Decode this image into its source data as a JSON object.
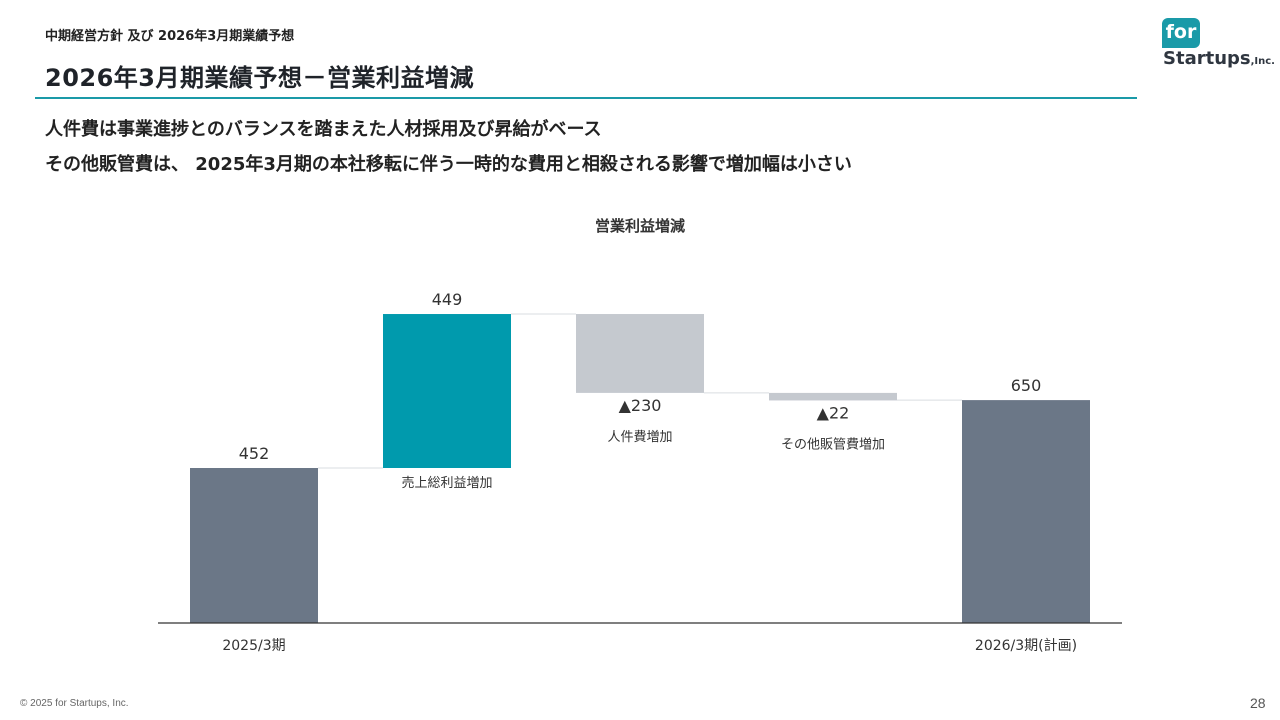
{
  "header": {
    "breadcrumb": "中期経営方針 及び 2026年3月期業績予想",
    "title": "2026年3月期業績予想－営業利益増減"
  },
  "bullets": [
    "人件費は事業進捗とのバランスを踏まえた人材採用及び昇給がベース",
    "その他販管費は、 2025年3月期の本社移転に伴う一時的な費用と相殺される影響で増加幅は小さい"
  ],
  "logo": {
    "badge": "for",
    "name": "Startups",
    "suffix": ",Inc."
  },
  "chart_data": {
    "type": "waterfall",
    "title": "営業利益増減",
    "steps": [
      {
        "category": "2025/3期",
        "kind": "total",
        "value": 452,
        "value_label": "452",
        "axis_label": "2025/3期",
        "bar_label": ""
      },
      {
        "category": "売上総利益増加",
        "kind": "increase",
        "value": 449,
        "value_label": "449",
        "axis_label": "",
        "bar_label": "売上総利益増加"
      },
      {
        "category": "人件費増加",
        "kind": "decrease",
        "value": -230,
        "value_label": "▲230",
        "axis_label": "",
        "bar_label": "人件費増加"
      },
      {
        "category": "その他販管費増加",
        "kind": "decrease",
        "value": -22,
        "value_label": "▲22",
        "axis_label": "",
        "bar_label": "その他販管費増加"
      },
      {
        "category": "2026/3期(計画)",
        "kind": "total",
        "value": 650,
        "value_label": "650",
        "axis_label": "2026/3期(計画)",
        "bar_label": ""
      }
    ],
    "ylim": [
      0,
      1000
    ],
    "grid": false,
    "legend": "none",
    "colors": {
      "total": "#6b7787",
      "increase": "#009aad",
      "decrease": "#c5c9cf",
      "connector": "#d9dde1",
      "axis": "#333333"
    }
  },
  "footer": {
    "copyright": "© 2025 for Startups, Inc.",
    "page_number": "28"
  }
}
